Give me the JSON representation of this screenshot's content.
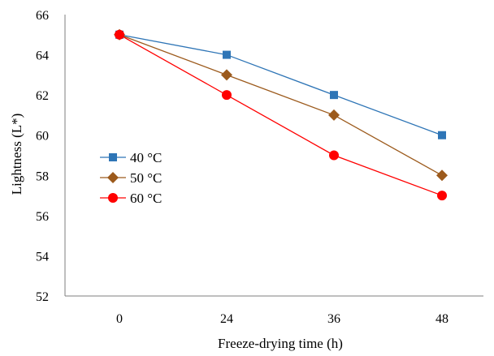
{
  "chart_data": {
    "type": "line",
    "title": "",
    "xlabel": "Freeze-drying time (h)",
    "ylabel": "Lightness (L*)",
    "categories": [
      "0",
      "24",
      "36",
      "48"
    ],
    "ylim": [
      52,
      66
    ],
    "yticks": [
      "52",
      "54",
      "56",
      "58",
      "60",
      "62",
      "64",
      "66"
    ],
    "grid": false,
    "legend_position": "left-middle",
    "series": [
      {
        "name": "40 °C",
        "values": [
          65,
          64,
          62,
          60
        ],
        "color": "#2e75b6",
        "marker": "square"
      },
      {
        "name": "50 °C",
        "values": [
          65,
          63,
          61,
          58
        ],
        "color": "#9c5a1c",
        "marker": "diamond"
      },
      {
        "name": "60 °C",
        "values": [
          65,
          62,
          59,
          57
        ],
        "color": "#ff0000",
        "marker": "circle"
      }
    ]
  }
}
